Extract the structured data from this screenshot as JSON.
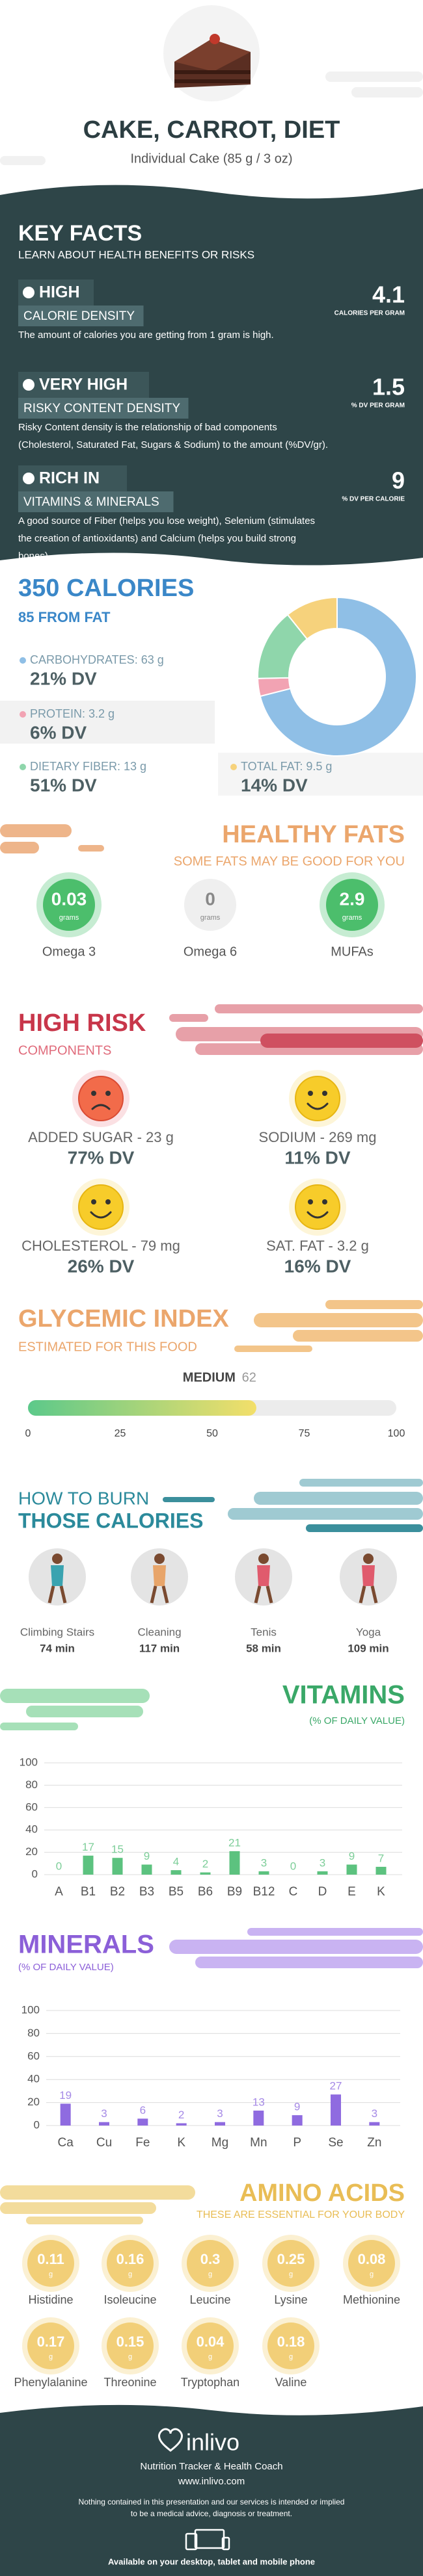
{
  "header": {
    "title": "CAKE, CARROT, DIET",
    "subtitle": "Individual Cake (85 g / 3 oz)"
  },
  "key_facts": {
    "title": "KEY FACTS",
    "subtitle": "LEARN ABOUT HEALTH BENEFITS OR RISKS",
    "facts": [
      {
        "level": "HIGH",
        "name": "CALORIE DENSITY",
        "value": 4.1,
        "unit": "CALORIES PER GRAM",
        "text": [
          "The amount of calories you are getting from 1 gram is high."
        ]
      },
      {
        "level": "VERY HIGH",
        "name": "RISKY CONTENT DENSITY",
        "value": 1.5,
        "unit": "% DV PER GRAM",
        "text": [
          "Risky Content density is the relationship of bad components",
          "(Cholesterol, Saturated Fat, Sugars & Sodium) to the amount (%DV/gr)."
        ]
      },
      {
        "level": "RICH IN",
        "name": "VITAMINS & MINERALS",
        "value": 9,
        "unit": "% DV PER CALORIE",
        "text": [
          "A good source of Fiber (helps you lose weight), Selenium (stimulates",
          "the creation of antioxidants) and Calcium (helps you build strong",
          "bones)."
        ]
      }
    ]
  },
  "calories": {
    "type": "donut",
    "title": "350 CALORIES",
    "subtitle": "85 FROM FAT",
    "items": [
      {
        "label": "CARBOHYDRATES: 63 g",
        "value": 63,
        "dv": "21% DV",
        "color": "#8fbfe6"
      },
      {
        "label": "PROTEIN: 3.2 g",
        "value": 3.2,
        "dv": "6% DV",
        "color": "#f2a3b3"
      },
      {
        "label": "DIETARY FIBER: 13 g",
        "value": 13,
        "dv": "51% DV",
        "color": "#8fd6ab"
      },
      {
        "label": "TOTAL FAT: 9.5 g",
        "value": 9.5,
        "dv": "14% DV",
        "color": "#f6d27c"
      }
    ]
  },
  "healthy_fats": {
    "title": "HEALTHY FATS",
    "subtitle": "SOME FATS MAY BE GOOD FOR YOU",
    "unit": "grams",
    "items": [
      {
        "name": "Omega 3",
        "value": 0.03,
        "color": "#4cbe6c"
      },
      {
        "name": "Omega 6",
        "value": 0,
        "color": "#efefef"
      },
      {
        "name": "MUFAs",
        "value": 2.9,
        "color": "#4cbe6c"
      }
    ]
  },
  "high_risk": {
    "title": "HIGH RISK",
    "subtitle": "COMPONENTS",
    "items": [
      {
        "label": "ADDED SUGAR - 23 g",
        "dv": "77% DV",
        "face": "sad"
      },
      {
        "label": "SODIUM - 269 mg",
        "dv": "11% DV",
        "face": "happy"
      },
      {
        "label": "CHOLESTEROL - 79 mg",
        "dv": "26% DV",
        "face": "happy"
      },
      {
        "label": "SAT. FAT - 3.2 g",
        "dv": "16% DV",
        "face": "happy"
      }
    ]
  },
  "glycemic": {
    "title": "GLYCEMIC INDEX",
    "subtitle": "ESTIMATED FOR THIS FOOD",
    "level": "MEDIUM",
    "value": 62,
    "xlim": [
      0,
      100
    ],
    "xticks": [
      0,
      25,
      50,
      75,
      100
    ]
  },
  "burn": {
    "title_line1": "HOW TO BURN",
    "title_line2": "THOSE CALORIES",
    "activities": [
      {
        "name": "Climbing Stairs",
        "time": "74 min"
      },
      {
        "name": "Cleaning",
        "time": "117 min"
      },
      {
        "name": "Tenis",
        "time": "58 min"
      },
      {
        "name": "Yoga",
        "time": "109 min"
      }
    ]
  },
  "chart_data": [
    {
      "type": "bar",
      "title": "VITAMINS",
      "subtitle": "(% OF DAILY VALUE)",
      "categories": [
        "A",
        "B1",
        "B2",
        "B3",
        "B5",
        "B6",
        "B9",
        "B12",
        "C",
        "D",
        "E",
        "K"
      ],
      "values": [
        0,
        17,
        15,
        9,
        4,
        2,
        21,
        3,
        0,
        3,
        9,
        7
      ],
      "color": "#5cc27f",
      "ylim": [
        0,
        100
      ],
      "yticks": [
        0,
        20,
        40,
        60,
        80,
        100
      ],
      "grid": true
    },
    {
      "type": "bar",
      "title": "MINERALS",
      "subtitle": "(% OF DAILY VALUE)",
      "categories": [
        "Ca",
        "Cu",
        "Fe",
        "K",
        "Mg",
        "Mn",
        "P",
        "Se",
        "Zn"
      ],
      "values": [
        19,
        3,
        6,
        2,
        3,
        13,
        9,
        27,
        3
      ],
      "color": "#8f6be0",
      "ylim": [
        0,
        100
      ],
      "yticks": [
        0,
        20,
        40,
        60,
        80,
        100
      ],
      "grid": true
    }
  ],
  "amino_acids": {
    "title": "AMINO ACIDS",
    "subtitle": "THESE ARE ESSENTIAL FOR YOUR BODY",
    "unit": "g",
    "items": [
      {
        "name": "Histidine",
        "value": 0.11
      },
      {
        "name": "Isoleucine",
        "value": 0.16
      },
      {
        "name": "Leucine",
        "value": 0.3
      },
      {
        "name": "Lysine",
        "value": 0.25
      },
      {
        "name": "Methionine",
        "value": 0.08
      },
      {
        "name": "Phenylalanine",
        "value": 0.17
      },
      {
        "name": "Threonine",
        "value": 0.15
      },
      {
        "name": "Tryptophan",
        "value": 0.04
      },
      {
        "name": "Valine",
        "value": 0.18
      }
    ]
  },
  "footer": {
    "brand": "inlivo",
    "tagline": "Nutrition Tracker & Health Coach",
    "url": "www.inlivo.com",
    "disclaimer": [
      "Nothing contained in this presentation and our services is intended or implied",
      "to be a medical advice, diagnosis or treatment."
    ],
    "availability": "Available on your desktop, tablet and mobile phone"
  }
}
